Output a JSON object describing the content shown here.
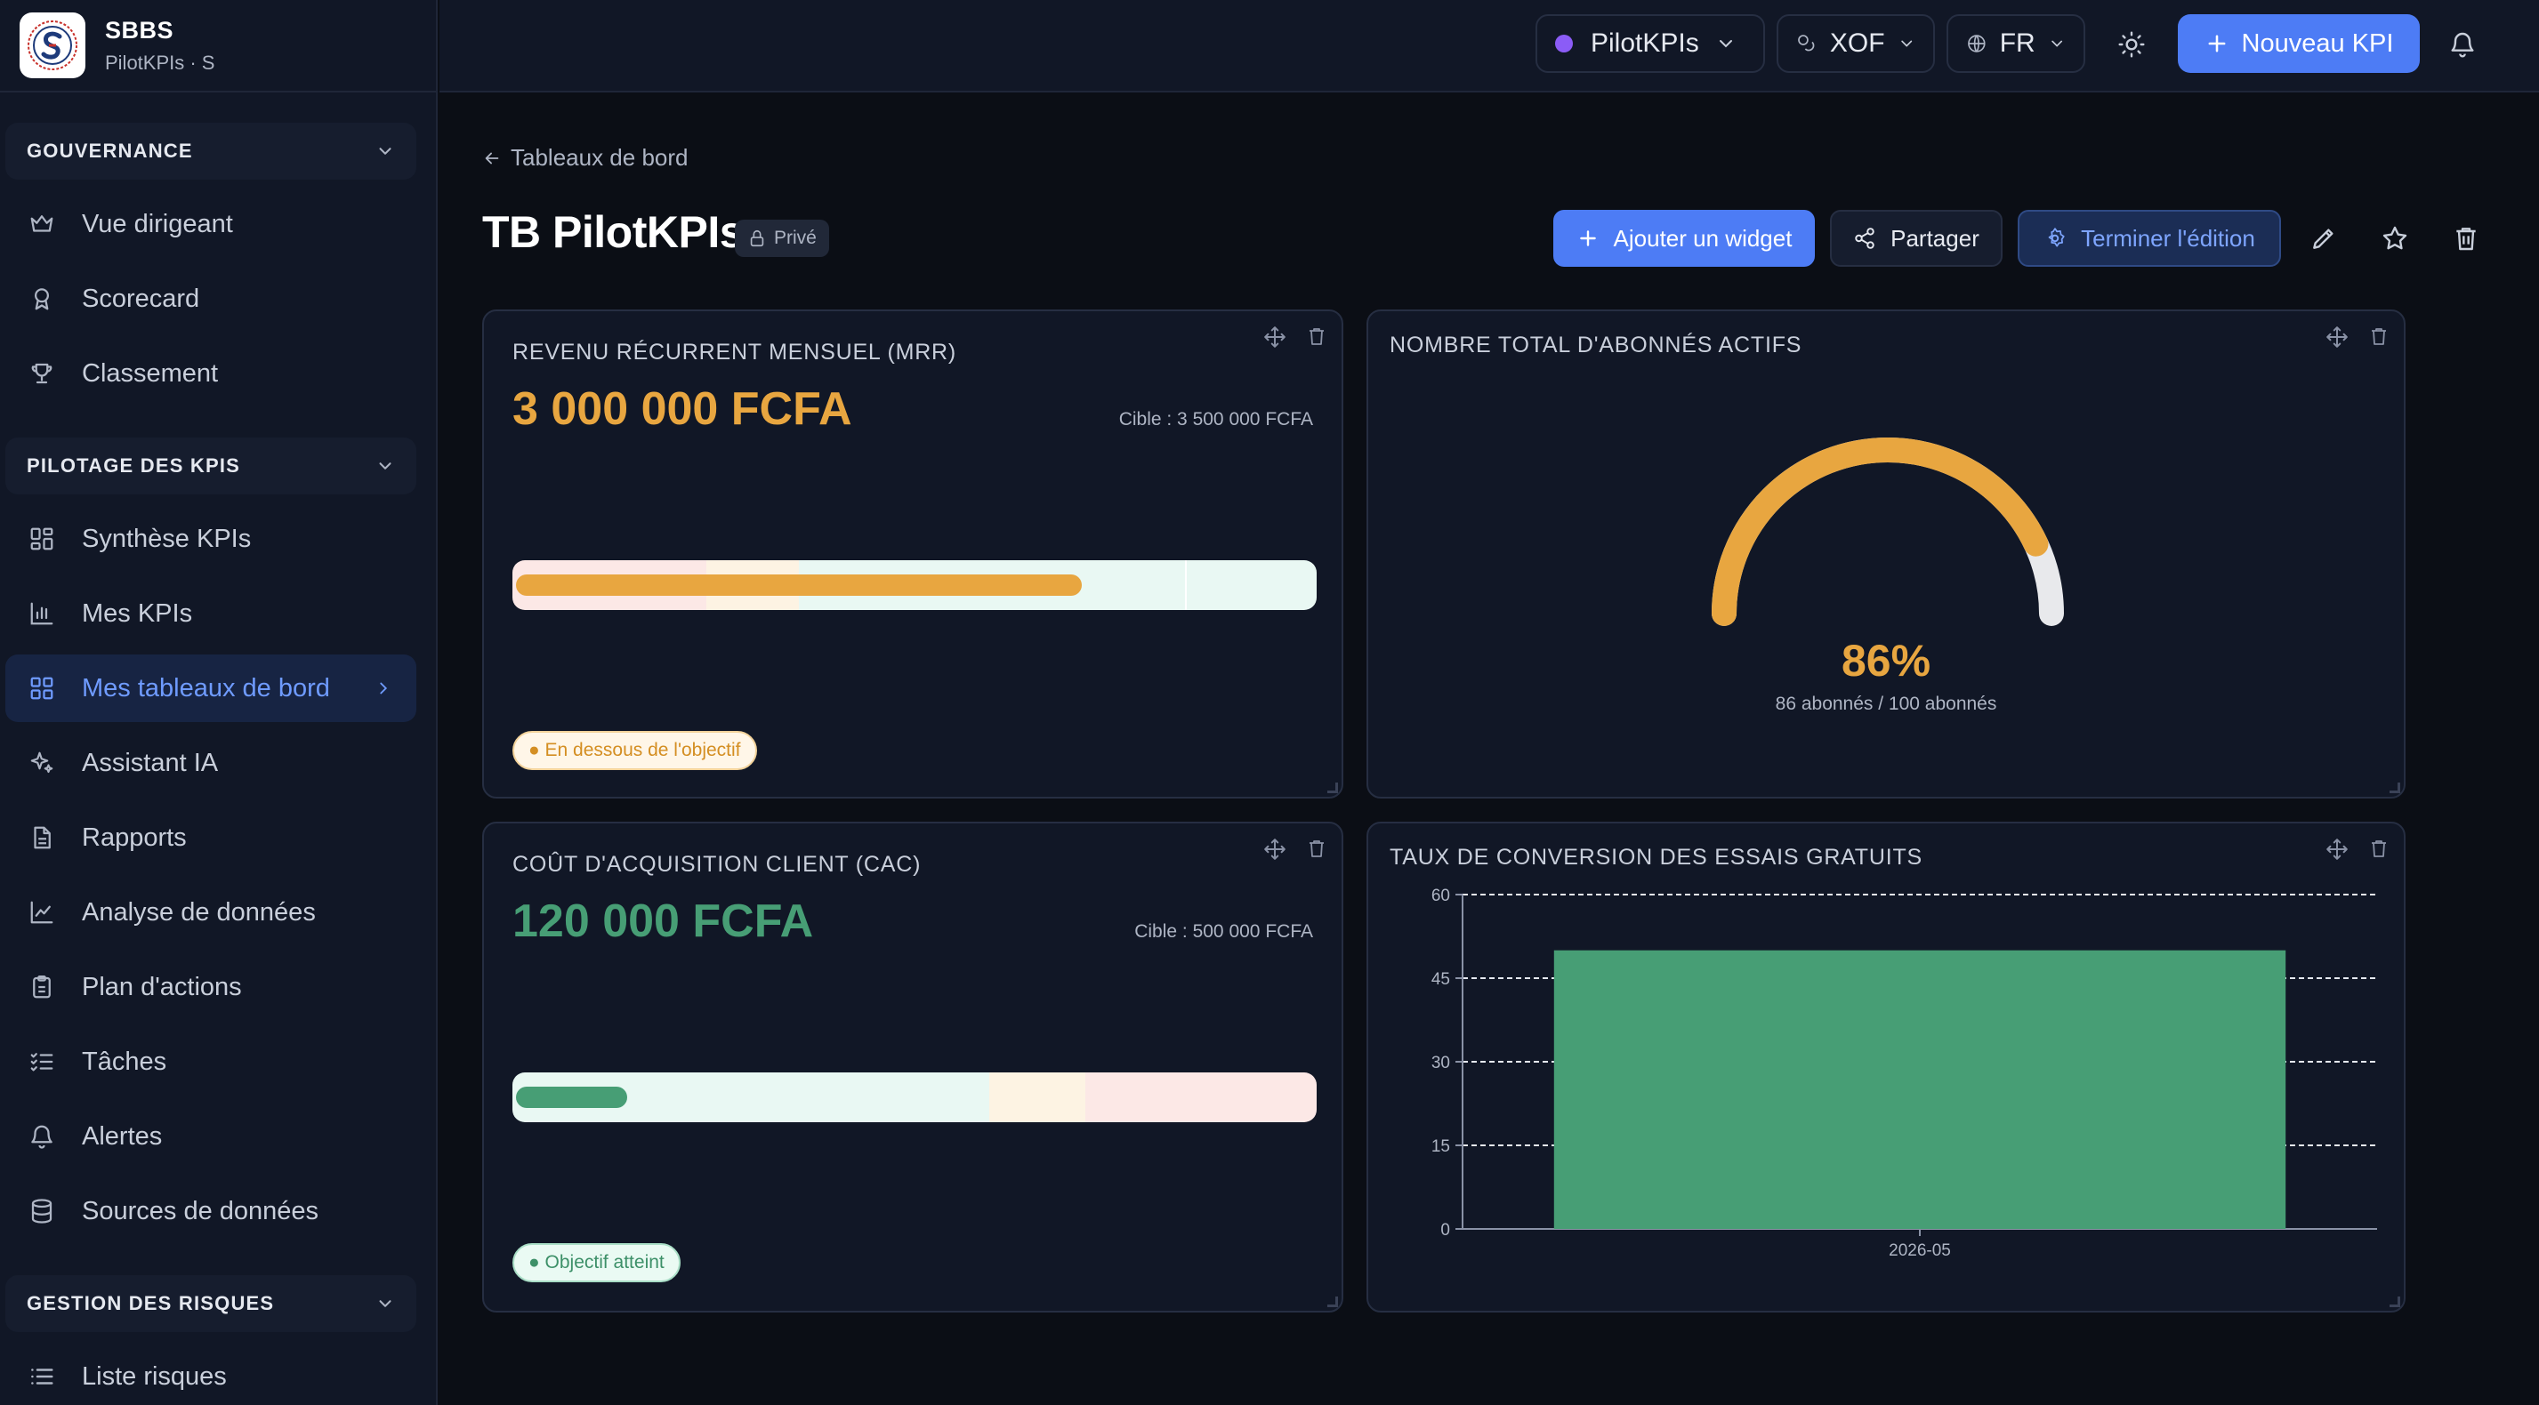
{
  "brand": {
    "name": "SBBS",
    "subtitle": "PilotKPIs · S"
  },
  "sidebar": {
    "sections": [
      {
        "label": "GOUVERNANCE",
        "items": [
          "Vue dirigeant",
          "Scorecard",
          "Classement"
        ]
      },
      {
        "label": "PILOTAGE DES KPIS",
        "items": [
          "Synthèse KPIs",
          "Mes KPIs",
          "Mes tableaux de bord",
          "Assistant IA",
          "Rapports",
          "Analyse de données",
          "Plan d'actions",
          "Tâches",
          "Alertes",
          "Sources de données"
        ]
      },
      {
        "label": "GESTION DES RISQUES",
        "items": [
          "Liste risques"
        ]
      }
    ],
    "active_item": "Mes tableaux de bord"
  },
  "topbar": {
    "workspace": "PilotKPIs",
    "currency": "XOF",
    "language": "FR",
    "new_kpi_label": "Nouveau KPI"
  },
  "header": {
    "back_label": "Tableaux de bord",
    "title": "TB PilotKPIs",
    "visibility": "Privé",
    "add_widget_label": "Ajouter un widget",
    "share_label": "Partager",
    "finish_edit_label": "Terminer l'édition"
  },
  "widgets": {
    "mrr": {
      "title": "REVENU RÉCURRENT MENSUEL (MRR)",
      "value": "3 000 000 FCFA",
      "target": "Cible : 3 500 000 FCFA",
      "progress": 0.71,
      "status": "● En dessous de l'objectif",
      "color": "#e8a640"
    },
    "subscribers": {
      "title": "NOMBRE TOTAL D'ABONNÉS ACTIFS",
      "percent_label": "86%",
      "percent": 0.86,
      "detail": "86 abonnés / 100 abonnés",
      "color": "#e8a640"
    },
    "cac": {
      "title": "COÛT D'ACQUISITION CLIENT (CAC)",
      "value": "120 000 FCFA",
      "target": "Cible : 500 000 FCFA",
      "progress": 0.14,
      "status": "● Objectif atteint",
      "color": "#479e75"
    },
    "conversion": {
      "title": "TAUX DE CONVERSION DES ESSAIS GRATUITS"
    }
  },
  "chart_data": {
    "type": "bar",
    "categories": [
      "2026-05"
    ],
    "values": [
      50
    ],
    "title": "TAUX DE CONVERSION DES ESSAIS GRATUITS",
    "xlabel": "",
    "ylabel": "",
    "ylim": [
      0,
      60
    ],
    "yticks": [
      0,
      15,
      30,
      45,
      60
    ],
    "grid": true,
    "color": "#479e75"
  }
}
